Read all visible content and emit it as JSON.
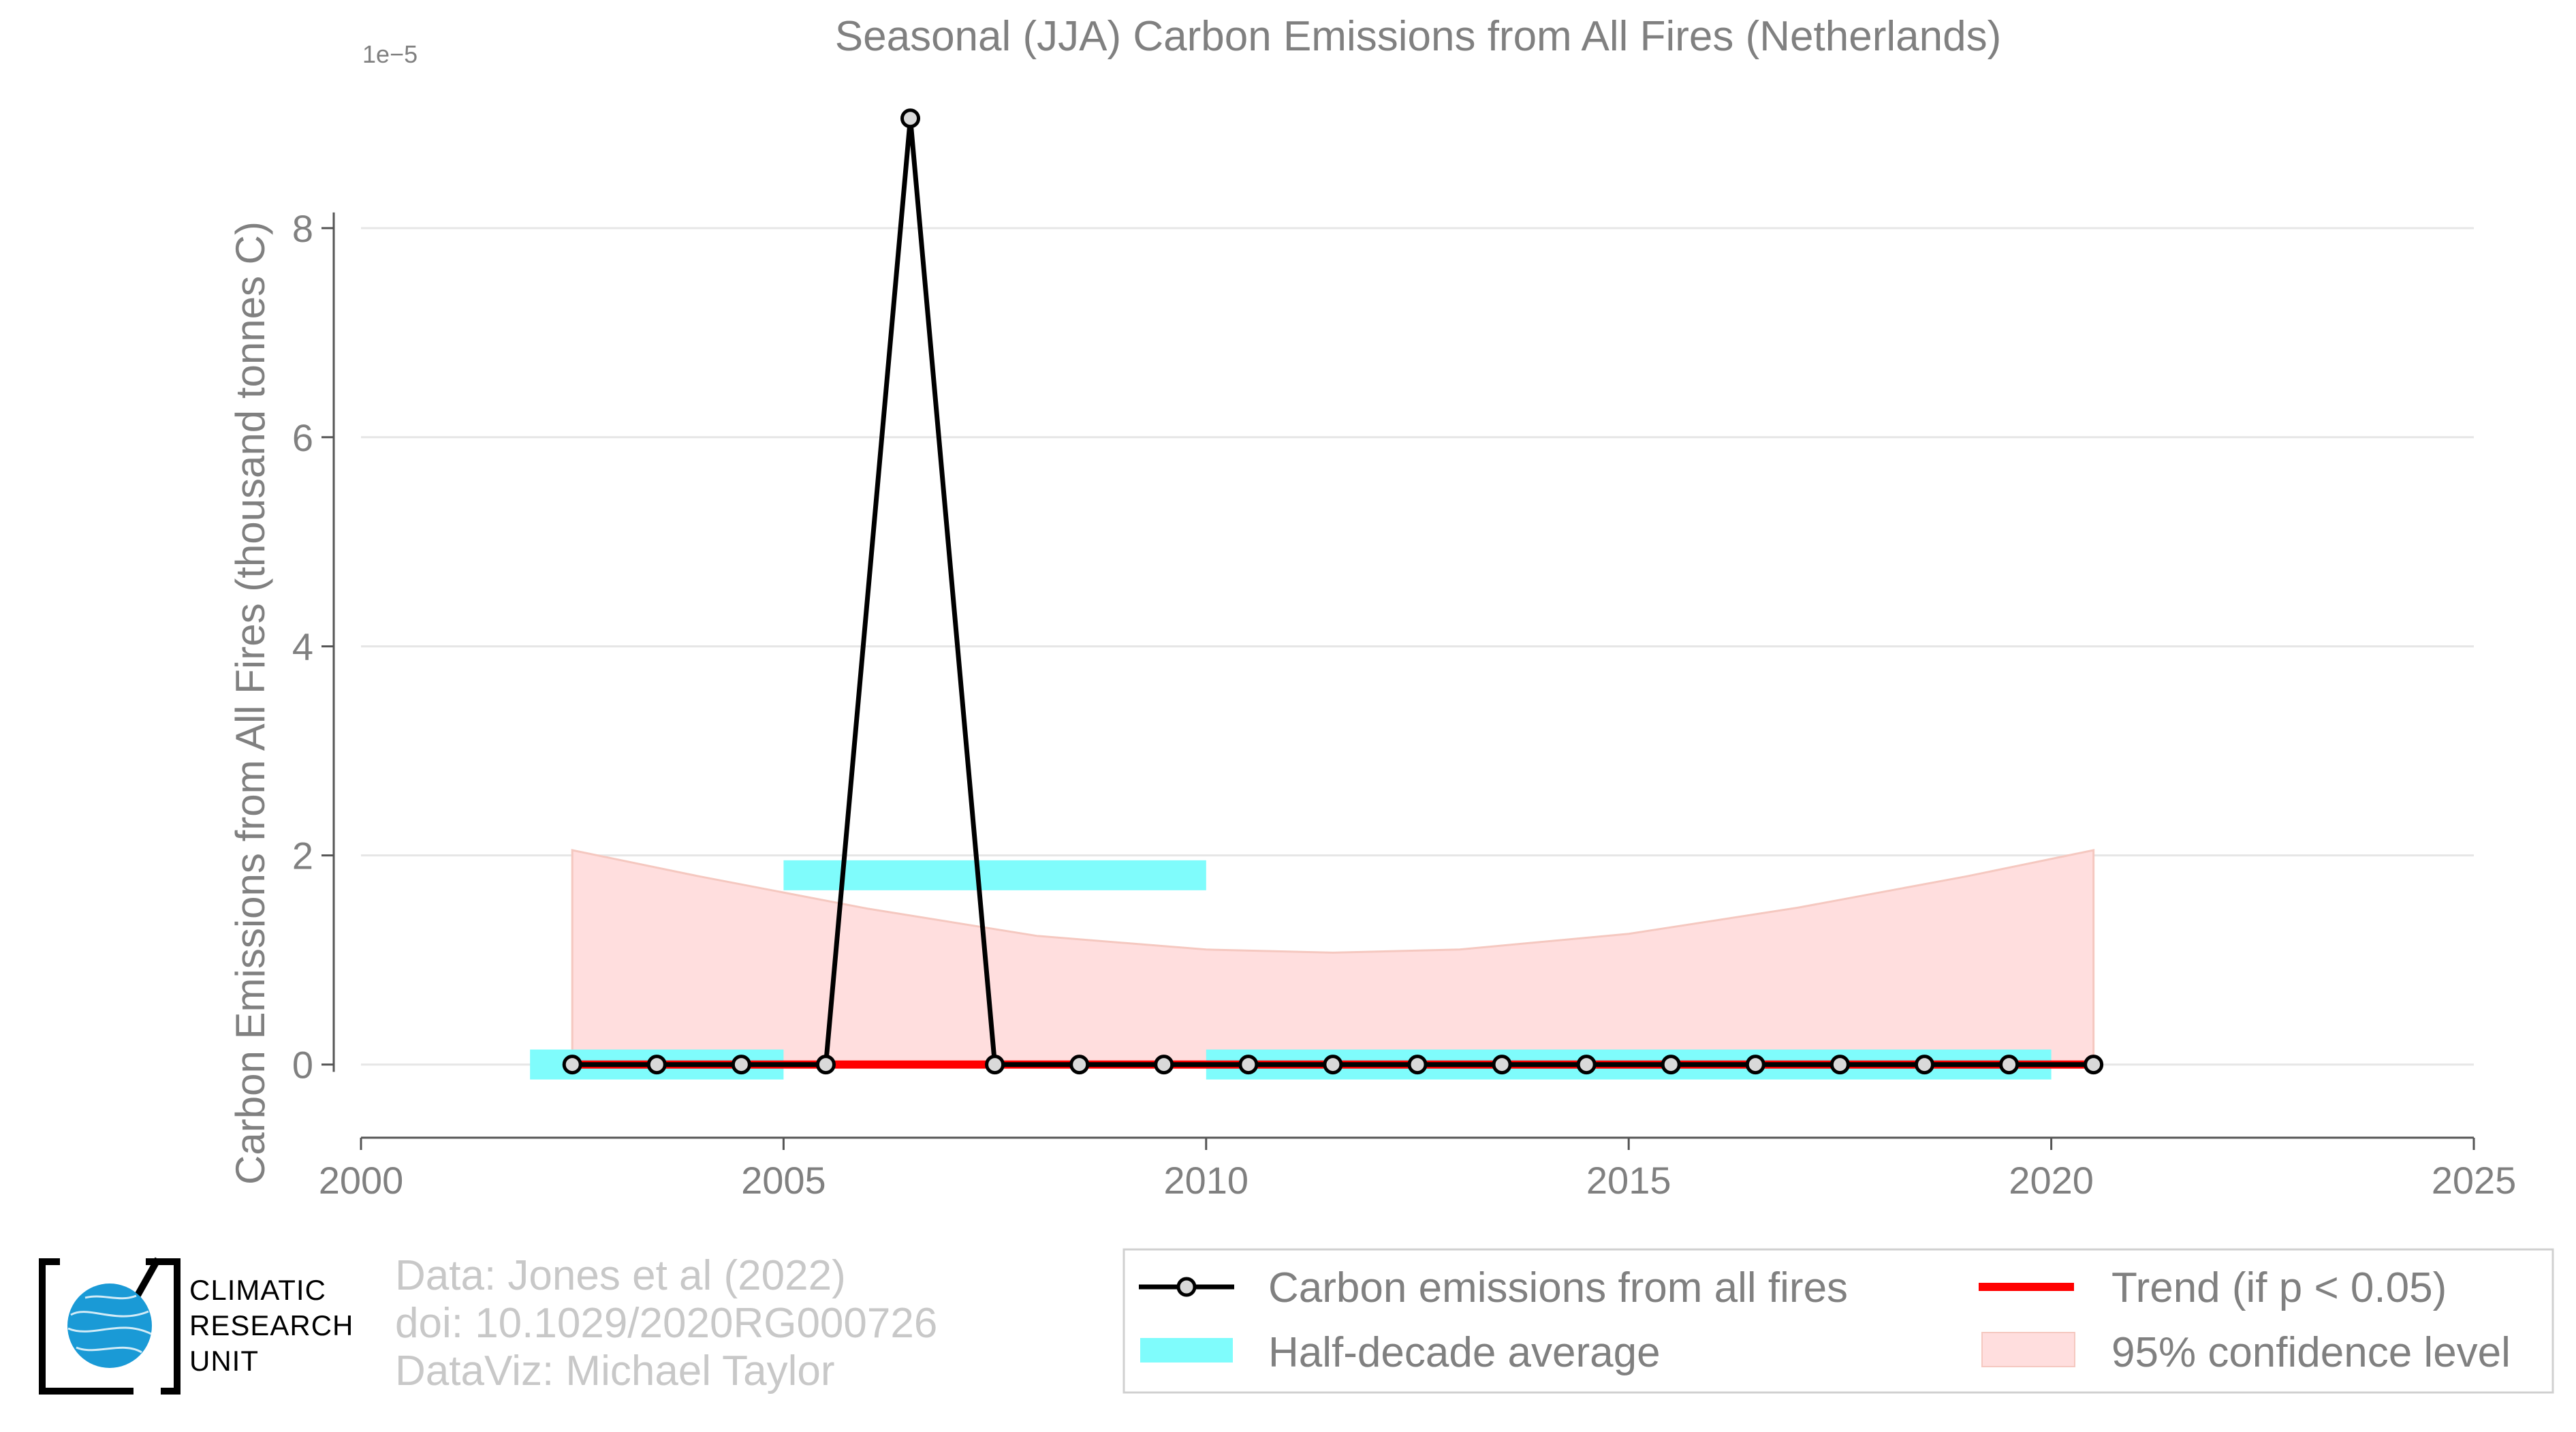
{
  "chart_data": {
    "type": "line",
    "title": "Seasonal (JJA) Carbon Emissions from All Fires (Netherlands)",
    "xlabel": "",
    "ylabel": "Carbon Emissions from All Fires (thousand tonnes C)",
    "y_exponent_label": "1e−5",
    "xlim": [
      2000,
      2025
    ],
    "ylim": [
      -0.7,
      9.4
    ],
    "x_ticks": [
      2000,
      2005,
      2010,
      2015,
      2020,
      2025
    ],
    "y_ticks": [
      0,
      2,
      4,
      6,
      8
    ],
    "grid": "horizontal",
    "legend_position": "bottom-right",
    "series": [
      {
        "name": "Carbon emissions from all fires",
        "kind": "line-markers",
        "color": "#000000",
        "x": [
          2002.5,
          2003.5,
          2004.5,
          2005.5,
          2006.5,
          2007.5,
          2008.5,
          2009.5,
          2010.5,
          2011.5,
          2012.5,
          2013.5,
          2014.5,
          2015.5,
          2016.5,
          2017.5,
          2018.5,
          2019.5,
          2020.5
        ],
        "y": [
          0,
          0,
          0,
          0,
          9.05,
          0,
          0,
          0,
          0,
          0,
          0,
          0,
          0,
          0,
          0,
          0,
          0,
          0,
          0
        ]
      },
      {
        "name": "Half-decade average",
        "kind": "bars",
        "color": "#7ffcfc",
        "segments": [
          {
            "x0": 2002,
            "x1": 2005,
            "y": 0
          },
          {
            "x0": 2005,
            "x1": 2010,
            "y": 1.81
          },
          {
            "x0": 2010,
            "x1": 2020,
            "y": 0
          }
        ]
      },
      {
        "name": "Trend (if p < 0.05)",
        "kind": "line",
        "color": "#ff0000",
        "x": [
          2002.5,
          2020.5
        ],
        "y": [
          0,
          0
        ]
      },
      {
        "name": "95% confidence level",
        "kind": "band",
        "color": "#ffdede",
        "x": [
          2002.5,
          2004,
          2006,
          2008,
          2010,
          2011.5,
          2013,
          2015,
          2017,
          2019,
          2020.5
        ],
        "upper": [
          2.05,
          1.8,
          1.49,
          1.23,
          1.1,
          1.07,
          1.1,
          1.25,
          1.5,
          1.8,
          2.05
        ],
        "lower": [
          0,
          0,
          0,
          0,
          0,
          0,
          0,
          0,
          0,
          0,
          0
        ]
      }
    ]
  },
  "credits": {
    "line1": "Data: Jones et al (2022)",
    "line2": "doi: 10.1029/2020RG000726",
    "line3": "DataViz: Michael Taylor"
  },
  "logo": {
    "line1": "CLIMATIC",
    "line2": "RESEARCH",
    "line3": "UNIT",
    "icon": "globe-icon"
  }
}
